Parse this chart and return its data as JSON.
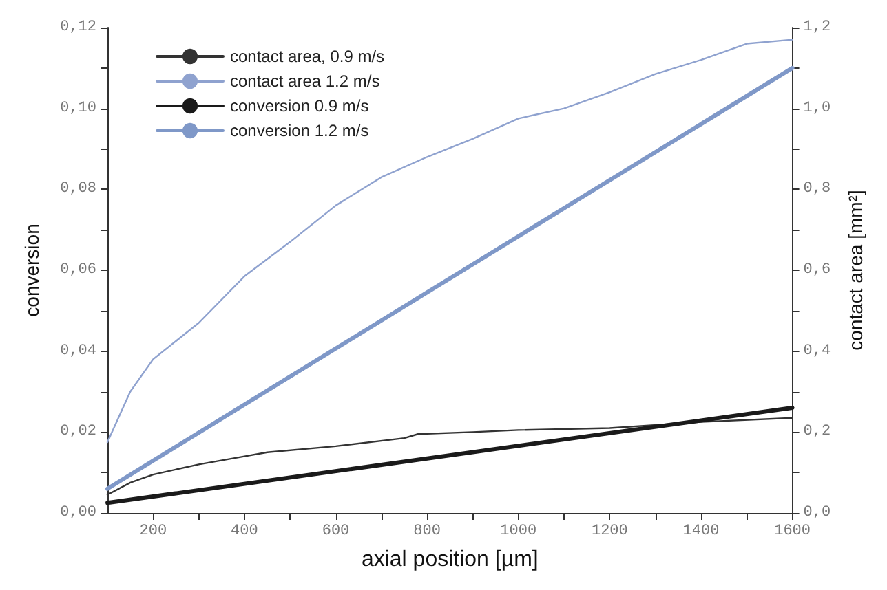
{
  "chart_data": {
    "type": "line",
    "xlabel": "axial position [µm]",
    "ylabel": "conversion",
    "y2label": "contact area [mm²]",
    "xlim": [
      100,
      1600
    ],
    "xticks": [
      {
        "value": 200,
        "label": "200"
      },
      {
        "value": 300,
        "label": null
      },
      {
        "value": 400,
        "label": "400"
      },
      {
        "value": 500,
        "label": null
      },
      {
        "value": 600,
        "label": "600"
      },
      {
        "value": 700,
        "label": null
      },
      {
        "value": 800,
        "label": "800"
      },
      {
        "value": 900,
        "label": null
      },
      {
        "value": 1000,
        "label": "1000"
      },
      {
        "value": 1100,
        "label": null
      },
      {
        "value": 1200,
        "label": "1200"
      },
      {
        "value": 1300,
        "label": null
      },
      {
        "value": 1400,
        "label": "1400"
      },
      {
        "value": 1500,
        "label": null
      },
      {
        "value": 1600,
        "label": "1600"
      }
    ],
    "ylim": [
      0,
      0.12
    ],
    "yticks": [
      {
        "value": 0,
        "label": "0,00"
      },
      {
        "value": 0.01,
        "label": null
      },
      {
        "value": 0.02,
        "label": "0,02"
      },
      {
        "value": 0.03,
        "label": null
      },
      {
        "value": 0.04,
        "label": "0,04"
      },
      {
        "value": 0.05,
        "label": null
      },
      {
        "value": 0.06,
        "label": "0,06"
      },
      {
        "value": 0.07,
        "label": null
      },
      {
        "value": 0.08,
        "label": "0,08"
      },
      {
        "value": 0.09,
        "label": null
      },
      {
        "value": 0.1,
        "label": "0,10"
      },
      {
        "value": 0.11,
        "label": null
      },
      {
        "value": 0.12,
        "label": "0,12"
      }
    ],
    "y2lim": [
      0,
      1.2
    ],
    "y2ticks": [
      {
        "value": 0,
        "label": "0,0"
      },
      {
        "value": 0.1,
        "label": null
      },
      {
        "value": 0.2,
        "label": "0,2"
      },
      {
        "value": 0.3,
        "label": null
      },
      {
        "value": 0.4,
        "label": "0,4"
      },
      {
        "value": 0.5,
        "label": null
      },
      {
        "value": 0.6,
        "label": "0,6"
      },
      {
        "value": 0.7,
        "label": null
      },
      {
        "value": 0.8,
        "label": "0,8"
      },
      {
        "value": 0.9,
        "label": null
      },
      {
        "value": 1.0,
        "label": "1,0"
      },
      {
        "value": 1.1,
        "label": null
      },
      {
        "value": 1.2,
        "label": "1,2"
      }
    ],
    "grid": false,
    "legend": "top left",
    "marker": "none",
    "line_style": "solid",
    "series": [
      {
        "name": "contact area, 0.9 m/s",
        "color": "#333333",
        "axis": "y2",
        "x": [
          100,
          150,
          200,
          300,
          400,
          450,
          600,
          750,
          780,
          900,
          1000,
          1200,
          1400,
          1600
        ],
        "values": [
          0.045,
          0.075,
          0.095,
          0.12,
          0.14,
          0.15,
          0.165,
          0.185,
          0.195,
          0.2,
          0.205,
          0.21,
          0.225,
          0.235
        ]
      },
      {
        "name": "contact area 1.2 m/s",
        "color": "#8fa2cf",
        "axis": "y2",
        "x": [
          100,
          150,
          200,
          300,
          400,
          500,
          600,
          700,
          800,
          900,
          1000,
          1100,
          1200,
          1300,
          1400,
          1500,
          1600
        ],
        "values": [
          0.175,
          0.3,
          0.38,
          0.47,
          0.585,
          0.67,
          0.76,
          0.83,
          0.88,
          0.925,
          0.975,
          1.0,
          1.04,
          1.085,
          1.12,
          1.16,
          1.17
        ]
      },
      {
        "name": "conversion 0.9 m/s",
        "color": "#1a1a1a",
        "axis": "y",
        "x": [
          100,
          1600
        ],
        "values": [
          0.0025,
          0.026
        ]
      },
      {
        "name": "conversion 1.2 m/s",
        "color": "#7f98c8",
        "axis": "y",
        "x": [
          100,
          1600
        ],
        "values": [
          0.006,
          0.11
        ]
      }
    ]
  }
}
